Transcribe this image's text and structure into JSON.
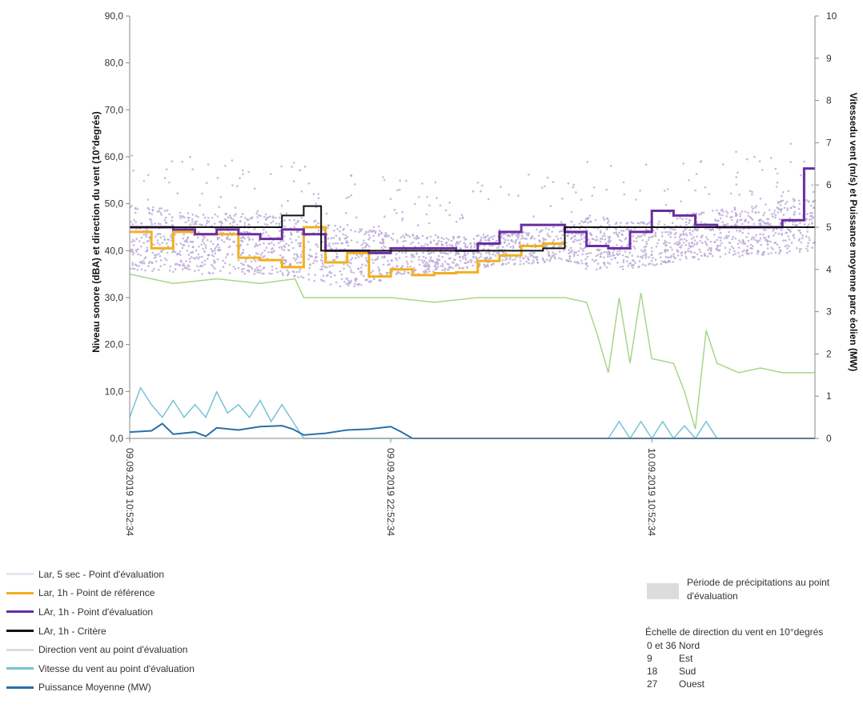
{
  "chart_data": {
    "type": "line",
    "title": "",
    "ylabel_left": "Niveau sonore (dBA) et direction du vent (10°degrés)",
    "ylabel_right": "Vitessedu vent (m/s) et Puissance moyenne parc éolien (MW)",
    "ylim_left": [
      0,
      90
    ],
    "ylim_right": [
      0,
      10
    ],
    "y_ticks_left": [
      "0,0",
      "10,0",
      "20,0",
      "30,0",
      "40,0",
      "50,0",
      "60,0",
      "70,0",
      "80,0",
      "90,0"
    ],
    "y_ticks_right": [
      "0",
      "1",
      "2",
      "3",
      "4",
      "5",
      "6",
      "7",
      "8",
      "9",
      "10"
    ],
    "x_ticks": [
      "09.09.2019 10:52:34",
      "09.09.2019 22:52:34",
      "10.09.2019 10:52:34"
    ],
    "x_unit": "hours since 09.09.2019 10:52:34",
    "x_range_hours": [
      0,
      31.5
    ],
    "grid": false,
    "legend_position": "bottom-left",
    "series": [
      {
        "name": "Lar, 5 sec - Point d'évaluation",
        "color": "#b3a3d3",
        "axis": "left",
        "style": "scatter",
        "bands": [
          {
            "x": 0,
            "low": 36,
            "high": 50
          },
          {
            "x": 3,
            "low": 35,
            "high": 48
          },
          {
            "x": 6,
            "low": 35,
            "high": 48
          },
          {
            "x": 8,
            "low": 34,
            "high": 47
          },
          {
            "x": 10,
            "low": 32,
            "high": 45
          },
          {
            "x": 12,
            "low": 34,
            "high": 44
          },
          {
            "x": 15,
            "low": 36,
            "high": 43
          },
          {
            "x": 18,
            "low": 37,
            "high": 44
          },
          {
            "x": 20,
            "low": 38,
            "high": 46
          },
          {
            "x": 21,
            "low": 36,
            "high": 48
          },
          {
            "x": 23,
            "low": 36,
            "high": 46
          },
          {
            "x": 26,
            "low": 38,
            "high": 48
          },
          {
            "x": 29,
            "low": 39,
            "high": 50
          },
          {
            "x": 31.5,
            "low": 40,
            "high": 52
          }
        ]
      },
      {
        "name": "Lar, 1h - Point de référence",
        "color": "#f2b01e",
        "axis": "left",
        "style": "step",
        "x": [
          0,
          1,
          2,
          3,
          4,
          5,
          6,
          7,
          8,
          9,
          10,
          11,
          12,
          13,
          14,
          15,
          16,
          17,
          18,
          19,
          20
        ],
        "y": [
          44,
          40.5,
          44,
          43.5,
          43.5,
          38.5,
          38,
          36.5,
          45,
          37.5,
          39.5,
          34.5,
          36,
          34.8,
          35.2,
          35.4,
          37.8,
          39,
          41,
          41.5,
          41.5
        ]
      },
      {
        "name": "LAr, 1h - Point d'évaluation",
        "color": "#6a2ea0",
        "axis": "left",
        "style": "step",
        "x": [
          0,
          1,
          2,
          3,
          4,
          5,
          6,
          7,
          8,
          9,
          10,
          11,
          12,
          13,
          14,
          15,
          16,
          17,
          18,
          19,
          20,
          21,
          22,
          23,
          24,
          25,
          26,
          27,
          28,
          29,
          30,
          31,
          31.5
        ],
        "y": [
          45,
          45,
          44.5,
          43.5,
          44.5,
          43.5,
          42.5,
          44.5,
          43.5,
          40,
          40,
          39.5,
          40.5,
          40.5,
          40.5,
          40,
          41.5,
          44,
          45.5,
          45.5,
          44,
          41,
          40.5,
          44,
          48.5,
          47.5,
          45.5,
          45,
          45,
          45,
          46.5,
          57.5,
          57.5
        ]
      },
      {
        "name": "LAr, 1h - Critère",
        "color": "#111111",
        "axis": "left",
        "style": "step",
        "x": [
          0,
          7,
          8,
          8.8,
          9,
          10,
          19,
          20,
          31.5
        ],
        "y": [
          45,
          47.5,
          49.5,
          40,
          40,
          40,
          40.5,
          45,
          45
        ]
      },
      {
        "name": "Direction vent au point d'évaluation",
        "color": "#a8d58a",
        "axis": "left",
        "style": "line",
        "x": [
          0,
          2,
          4,
          6,
          7.6,
          8,
          10,
          12,
          14,
          16,
          18,
          20,
          21,
          21.5,
          22,
          22.5,
          23,
          23.5,
          24,
          25,
          25.5,
          26,
          26.5,
          27,
          28,
          29,
          30,
          31.5
        ],
        "y": [
          35,
          33,
          34,
          33,
          34,
          30,
          30,
          30,
          29,
          30,
          30,
          30,
          29,
          22,
          14,
          30,
          16,
          31,
          17,
          16,
          10,
          2,
          23,
          16,
          14,
          15,
          14,
          14
        ]
      },
      {
        "name": "Vitesse du vent au point d'évaluation",
        "color": "#76c3d6",
        "axis": "right",
        "style": "line",
        "x": [
          0,
          0.5,
          1,
          1.5,
          2,
          2.5,
          3,
          3.5,
          4,
          4.5,
          5,
          5.5,
          6,
          6.5,
          7,
          7.5,
          8,
          22,
          22.5,
          23,
          23.5,
          24,
          24.5,
          25,
          25.5,
          26,
          26.5,
          27,
          31.5
        ],
        "y": [
          0.5,
          1.2,
          0.8,
          0.5,
          0.9,
          0.5,
          0.8,
          0.5,
          1.1,
          0.6,
          0.8,
          0.5,
          0.9,
          0.4,
          0.8,
          0.4,
          0,
          0,
          0.4,
          0,
          0.4,
          0,
          0.4,
          0,
          0.3,
          0,
          0.4,
          0,
          0
        ]
      },
      {
        "name": "Puissance Moyenne (MW)",
        "color": "#2b6fa7",
        "axis": "right",
        "style": "line",
        "x": [
          0,
          1,
          1.5,
          2,
          3,
          3.5,
          4,
          5,
          6,
          7,
          7.5,
          8,
          9,
          10,
          11,
          12,
          12.5,
          13,
          31.5
        ],
        "y": [
          0.15,
          0.18,
          0.35,
          0.1,
          0.15,
          0.05,
          0.25,
          0.2,
          0.28,
          0.3,
          0.22,
          0.08,
          0.12,
          0.2,
          0.22,
          0.28,
          0.15,
          0,
          0
        ]
      }
    ]
  },
  "legend": {
    "items": [
      {
        "label": "Lar, 5 sec - Point d'évaluation",
        "color": "#e8e2f2"
      },
      {
        "label": "Lar, 1h - Point de référence",
        "color": "#f2b01e"
      },
      {
        "label": "LAr, 1h - Point d'évaluation",
        "color": "#6a2ea0"
      },
      {
        "label": "LAr, 1h - Critère",
        "color": "#111111"
      },
      {
        "label": "Direction vent au point d'évaluation",
        "color": "#dcdcdc"
      },
      {
        "label": "Vitesse du vent au point d'évaluation",
        "color": "#76c3d6"
      },
      {
        "label": "Puissance Moyenne (MW)",
        "color": "#2b6fa7"
      }
    ]
  },
  "rain": {
    "label": "Période de précipitations au point d'évaluation"
  },
  "wind_scale": {
    "title": "Échelle de direction du vent  en 10°degrés",
    "rows": [
      {
        "code": "0 et 36",
        "dir": "Nord"
      },
      {
        "code": "9",
        "dir": "Est"
      },
      {
        "code": "18",
        "dir": "Sud"
      },
      {
        "code": "27",
        "dir": "Ouest"
      }
    ]
  }
}
